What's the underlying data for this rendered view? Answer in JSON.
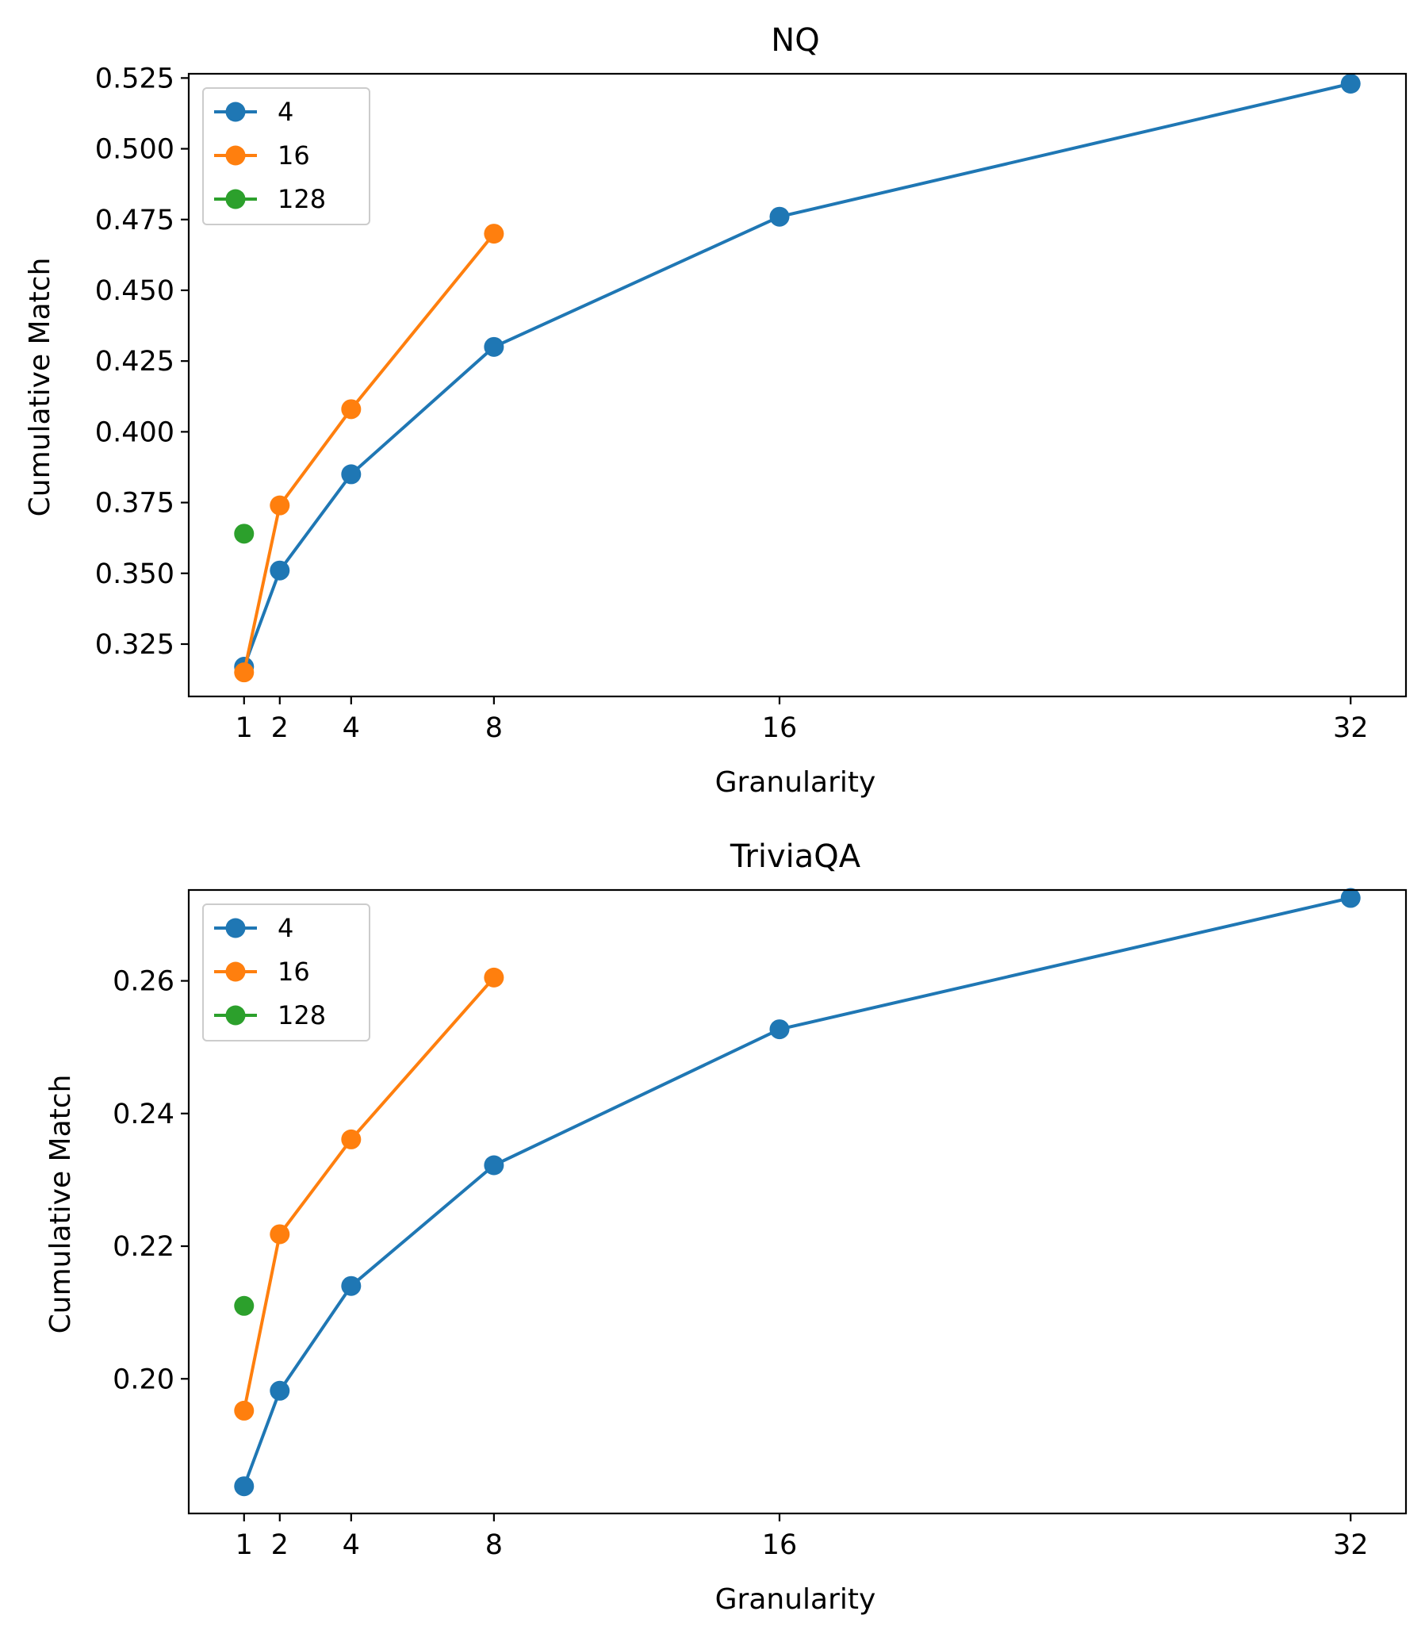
{
  "chart_data": [
    {
      "type": "line",
      "title": "NQ",
      "xlabel": "Granularity",
      "ylabel": "Cumulative Match",
      "xlim": [
        -0.55,
        33.55
      ],
      "ylim": [
        0.3065,
        0.5265
      ],
      "xticks": [
        1,
        2,
        4,
        8,
        16,
        32
      ],
      "xtick_labels": [
        "1",
        "2",
        "4",
        "8",
        "16",
        "32"
      ],
      "yticks": [
        0.325,
        0.35,
        0.375,
        0.4,
        0.425,
        0.45,
        0.475,
        0.5,
        0.525
      ],
      "ytick_labels": [
        "0.325",
        "0.350",
        "0.375",
        "0.400",
        "0.425",
        "0.450",
        "0.475",
        "0.500",
        "0.525"
      ],
      "legend_position": "upper-left",
      "grid": false,
      "series": [
        {
          "name": "4",
          "color": "#1f77b4",
          "x": [
            1,
            2,
            4,
            8,
            16,
            32
          ],
          "y": [
            0.317,
            0.351,
            0.385,
            0.43,
            0.476,
            0.523
          ]
        },
        {
          "name": "16",
          "color": "#ff7f0e",
          "x": [
            1,
            2,
            4,
            8
          ],
          "y": [
            0.315,
            0.374,
            0.408,
            0.47
          ]
        },
        {
          "name": "128",
          "color": "#2ca02c",
          "x": [
            1
          ],
          "y": [
            0.364
          ]
        }
      ]
    },
    {
      "type": "line",
      "title": "TriviaQA",
      "xlabel": "Granularity",
      "ylabel": "Cumulative Match",
      "xlim": [
        -0.55,
        33.55
      ],
      "ylim": [
        0.1797,
        0.2737
      ],
      "xticks": [
        1,
        2,
        4,
        8,
        16,
        32
      ],
      "xtick_labels": [
        "1",
        "2",
        "4",
        "8",
        "16",
        "32"
      ],
      "yticks": [
        0.2,
        0.22,
        0.24,
        0.26
      ],
      "ytick_labels": [
        "0.20",
        "0.22",
        "0.24",
        "0.26"
      ],
      "legend_position": "upper-left",
      "grid": false,
      "series": [
        {
          "name": "4",
          "color": "#1f77b4",
          "x": [
            1,
            2,
            4,
            8,
            16,
            32
          ],
          "y": [
            0.1838,
            0.1982,
            0.214,
            0.2322,
            0.2527,
            0.2725
          ]
        },
        {
          "name": "16",
          "color": "#ff7f0e",
          "x": [
            1,
            2,
            4,
            8
          ],
          "y": [
            0.1952,
            0.2218,
            0.2361,
            0.2605
          ]
        },
        {
          "name": "128",
          "color": "#2ca02c",
          "x": [
            1
          ],
          "y": [
            0.211
          ]
        }
      ]
    }
  ]
}
